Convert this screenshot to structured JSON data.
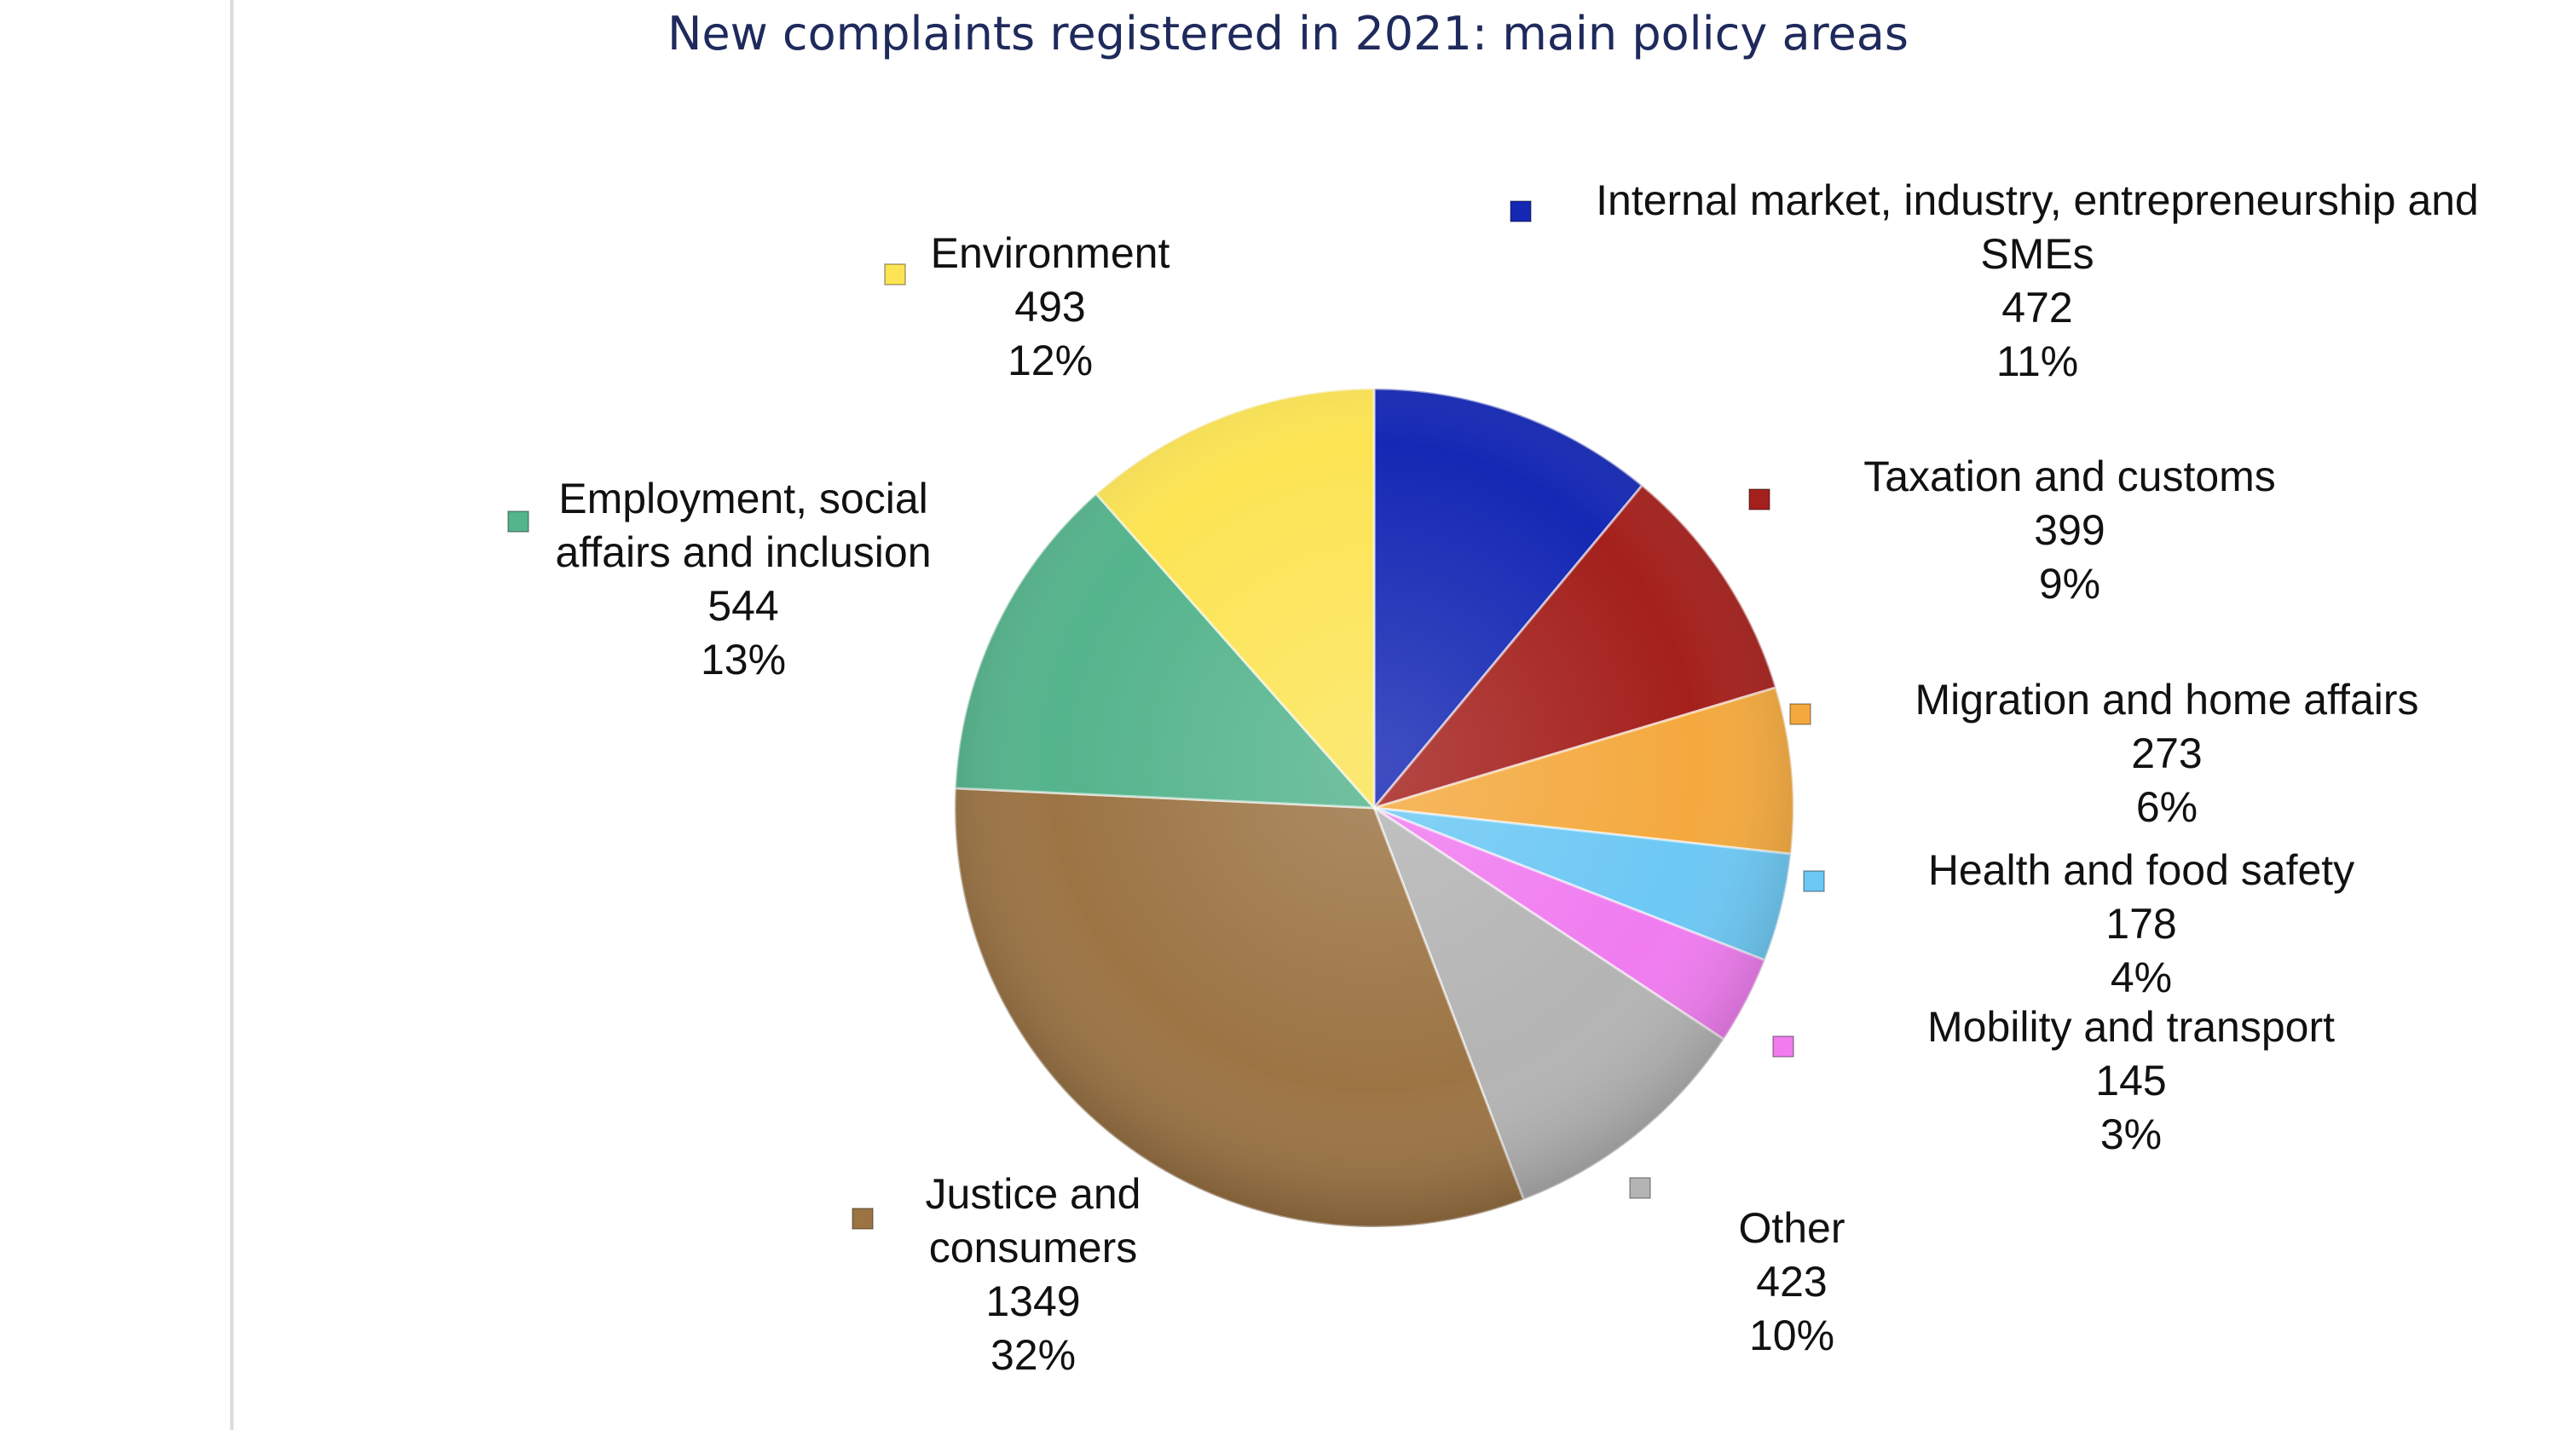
{
  "chart_data": {
    "type": "pie",
    "title": "New complaints registered in 2021: main policy areas",
    "slices": [
      {
        "name": "Internal market, industry, entrepreneurship and SMEs",
        "name_lines": [
          "Internal market, industry, entrepreneurship and",
          "SMEs"
        ],
        "value": 472,
        "value_label": "472",
        "percent_label": "11%",
        "color": "#1528b4"
      },
      {
        "name": "Taxation and customs",
        "name_lines": [
          "Taxation and customs"
        ],
        "value": 399,
        "value_label": "399",
        "percent_label": "9%",
        "color": "#a4201c"
      },
      {
        "name": "Migration and home affairs",
        "name_lines": [
          "Migration and home affairs"
        ],
        "value": 273,
        "value_label": "273",
        "percent_label": "6%",
        "color": "#f4a93e"
      },
      {
        "name": "Health and food safety",
        "name_lines": [
          "Health and food safety"
        ],
        "value": 178,
        "value_label": "178",
        "percent_label": "4%",
        "color": "#6cc8f4"
      },
      {
        "name": "Mobility and transport",
        "name_lines": [
          "Mobility and transport"
        ],
        "value": 145,
        "value_label": "145",
        "percent_label": "3%",
        "color": "#f07cf0"
      },
      {
        "name": "Other",
        "name_lines": [
          "Other"
        ],
        "value": 423,
        "value_label": "423",
        "percent_label": "10%",
        "color": "#b4b4b4"
      },
      {
        "name": "Justice and consumers",
        "name_lines": [
          "Justice and",
          "consumers"
        ],
        "value": 1349,
        "value_label": "1349",
        "percent_label": "32%",
        "color": "#9c7444"
      },
      {
        "name": "Employment, social affairs and inclusion",
        "name_lines": [
          "Employment, social",
          "affairs and inclusion"
        ],
        "value": 544,
        "value_label": "544",
        "percent_label": "13%",
        "color": "#54b48c"
      },
      {
        "name": "Environment",
        "name_lines": [
          "Environment"
        ],
        "value": 493,
        "value_label": "493",
        "percent_label": "12%",
        "color": "#fce454"
      }
    ],
    "start_angle": "12 o'clock",
    "direction": "clockwise",
    "legend": "none",
    "data_labels": "outside, with colour marker"
  }
}
